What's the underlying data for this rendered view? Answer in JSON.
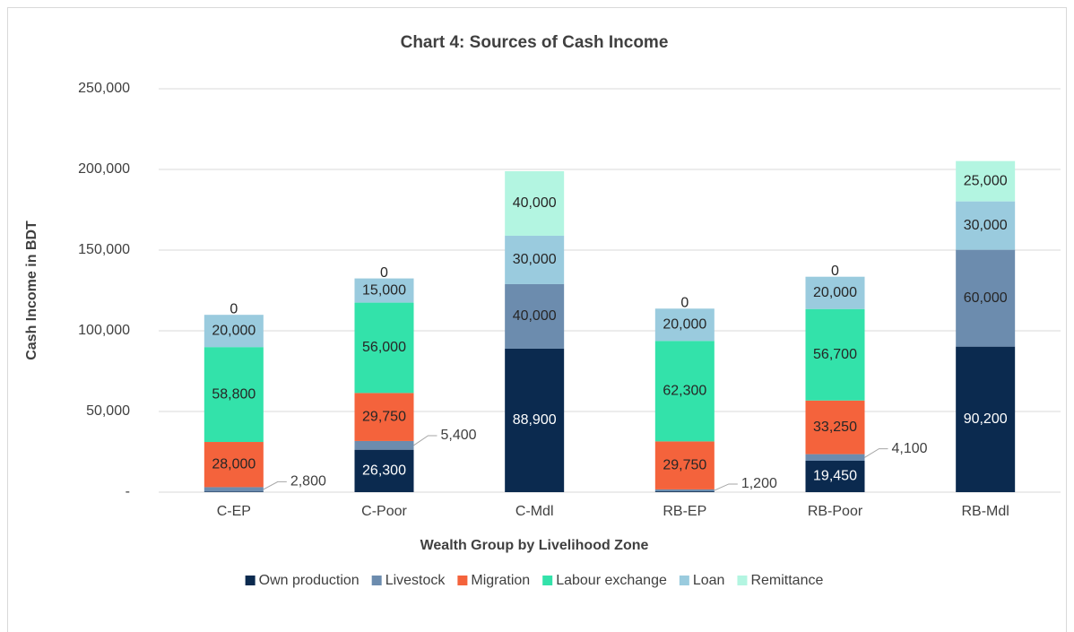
{
  "chart_data": {
    "type": "stacked_bar",
    "title": "Chart 4: Sources of Cash Income",
    "xlabel": "Wealth Group by Livelihood Zone",
    "ylabel": "Cash Income in BDT",
    "categories": [
      "C-EP",
      "C-Poor",
      "C-Mdl",
      "RB-EP",
      "RB-Poor",
      "RB-Mdl"
    ],
    "series": [
      {
        "name": "Own production",
        "color": "#0b2a4f",
        "values": [
          300,
          26300,
          88900,
          500,
          19450,
          90200
        ],
        "value_labels": [
          "300",
          "26,300",
          "88,900",
          "500",
          "19,450",
          "90,200"
        ]
      },
      {
        "name": "Livestock",
        "color": "#6c8cae",
        "values": [
          2800,
          5400,
          40000,
          1200,
          4100,
          60000
        ],
        "value_labels": [
          "2,800",
          "5,400",
          "40,000",
          "1,200",
          "4,100",
          "60,000"
        ]
      },
      {
        "name": "Migration",
        "color": "#f4633c",
        "values": [
          28000,
          29750,
          0,
          29750,
          33250,
          0
        ],
        "value_labels": [
          "28,000",
          "29,750",
          "0",
          "29,750",
          "33,250",
          "0"
        ]
      },
      {
        "name": "Labour exchange",
        "color": "#33e2aa",
        "values": [
          58800,
          56000,
          0,
          62300,
          56700,
          0
        ],
        "value_labels": [
          "58,800",
          "56,000",
          "0",
          "62,300",
          "56,700",
          "0"
        ]
      },
      {
        "name": "Loan",
        "color": "#9acbde",
        "values": [
          20000,
          15000,
          30000,
          20000,
          20000,
          30000
        ],
        "value_labels": [
          "20,000",
          "15,000",
          "30,000",
          "20,000",
          "20,000",
          "30,000"
        ]
      },
      {
        "name": "Remittance",
        "color": "#b3f5e1",
        "values": [
          0,
          0,
          40000,
          0,
          0,
          25000
        ],
        "value_labels": [
          "0",
          "0",
          "40,000",
          "0",
          "0",
          "25,000"
        ]
      }
    ],
    "ylim": [
      0,
      250000
    ],
    "yticks": [
      {
        "value": 0,
        "label": "-"
      },
      {
        "value": 50000,
        "label": "50,000"
      },
      {
        "value": 100000,
        "label": "100,000"
      },
      {
        "value": 150000,
        "label": "150,000"
      },
      {
        "value": 200000,
        "label": "200,000"
      },
      {
        "value": 250000,
        "label": "250,000"
      }
    ],
    "grid": true,
    "legend": "bottom"
  }
}
